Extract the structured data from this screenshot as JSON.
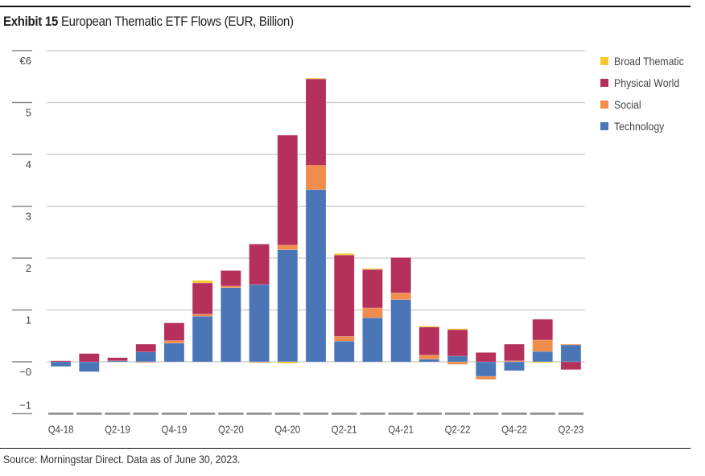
{
  "exhibit": {
    "number_label": "Exhibit 15",
    "title_text": "European Thematic ETF Flows (EUR, Billion)",
    "source": "Source: Morningstar Direct. Data as of June 30, 2023."
  },
  "chart_data": {
    "type": "bar",
    "stacked": true,
    "title": "Exhibit 15 European Thematic ETF Flows (EUR, Billion)",
    "xlabel": "",
    "ylabel": "",
    "ylim": [
      -1,
      6
    ],
    "yticks": [
      -1,
      0,
      1,
      2,
      3,
      4,
      5,
      6
    ],
    "ytick_labels": [
      "−1",
      "−0",
      "1",
      "2",
      "3",
      "4",
      "5",
      "€6"
    ],
    "grid": true,
    "legend_position": "right",
    "categories": [
      "Q4-18",
      "Q1-19",
      "Q2-19",
      "Q3-19",
      "Q4-19",
      "Q1-20",
      "Q2-20",
      "Q3-20",
      "Q4-20",
      "Q1-21",
      "Q2-21",
      "Q3-21",
      "Q4-21",
      "Q1-22",
      "Q2-22",
      "Q3-22",
      "Q4-22",
      "Q1-23",
      "Q2-23"
    ],
    "xtick_labels": [
      "Q4-18",
      "",
      "Q2-19",
      "",
      "Q4-19",
      "",
      "Q2-20",
      "",
      "Q4-20",
      "",
      "Q2-21",
      "",
      "Q4-21",
      "",
      "Q2-22",
      "",
      "Q4-22",
      "",
      "Q2-23"
    ],
    "series": [
      {
        "name": "Technology",
        "color": "#4A76B8",
        "values": [
          -0.09,
          -0.19,
          0.02,
          0.19,
          0.36,
          0.88,
          1.43,
          1.49,
          2.16,
          3.32,
          0.4,
          0.85,
          1.2,
          0.05,
          0.11,
          -0.28,
          -0.17,
          0.2,
          0.33
        ]
      },
      {
        "name": "Social",
        "color": "#F08C4C",
        "values": [
          0.0,
          0.0,
          0.0,
          -0.01,
          0.05,
          0.04,
          0.03,
          -0.01,
          0.09,
          0.47,
          0.09,
          0.19,
          0.13,
          0.08,
          -0.05,
          -0.06,
          0.02,
          0.22,
          0.01
        ]
      },
      {
        "name": "Physical World",
        "color": "#B5305A",
        "values": [
          0.02,
          0.16,
          0.06,
          0.15,
          0.34,
          0.6,
          0.3,
          0.78,
          2.12,
          1.67,
          1.57,
          0.74,
          0.68,
          0.54,
          0.51,
          0.18,
          0.32,
          0.4,
          -0.15
        ]
      },
      {
        "name": "Broad Thematic",
        "color": "#F5C92E",
        "values": [
          0.0,
          0.0,
          0.0,
          0.0,
          0.0,
          0.05,
          0.0,
          0.0,
          -0.03,
          0.01,
          0.03,
          0.02,
          0.0,
          0.02,
          0.02,
          0.0,
          0.0,
          -0.02,
          0.0
        ]
      }
    ],
    "legend": [
      "Broad Thematic",
      "Physical World",
      "Social",
      "Technology"
    ]
  }
}
